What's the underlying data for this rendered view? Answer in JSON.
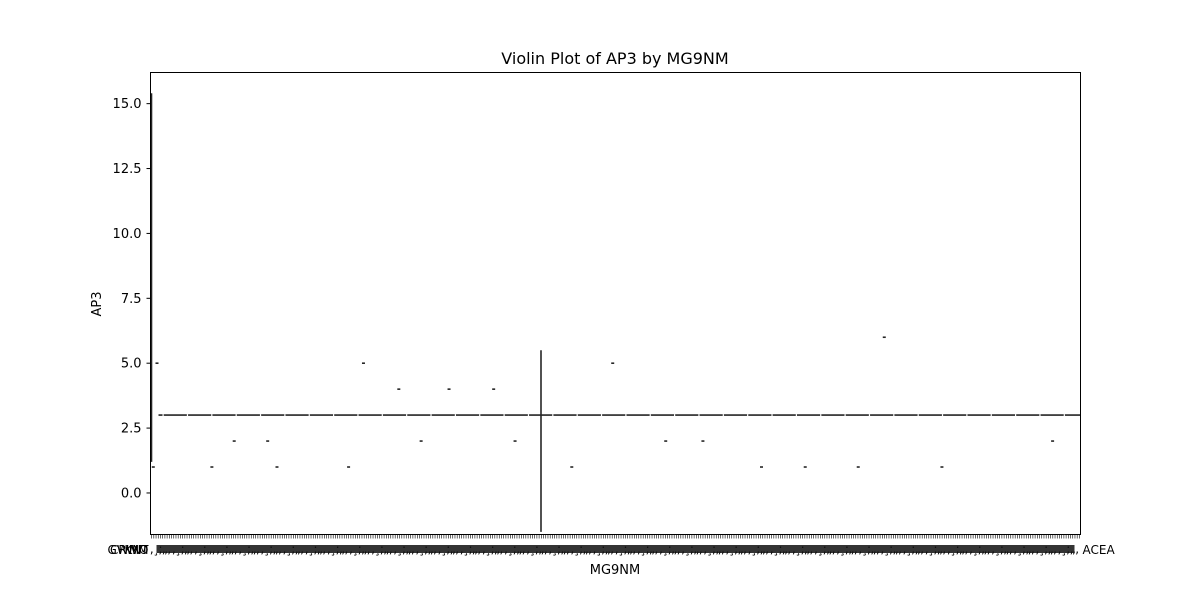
{
  "chart_data": {
    "type": "violin",
    "title": "Violin Plot of AP3 by MG9NM",
    "xlabel": "MG9NM",
    "ylabel": "AP3",
    "ylim": [
      -1.6,
      16.2
    ],
    "yticks": [
      "0.0",
      "2.5",
      "5.0",
      "7.5",
      "10.0",
      "12.5",
      "15.0"
    ],
    "ytick_values": [
      0,
      2.5,
      5.0,
      7.5,
      10.0,
      12.5,
      15.0
    ],
    "grid": false,
    "legend": "none",
    "category_count": 420,
    "xtick_labels_first": [
      "CRWM",
      "GWMO",
      "KNT"
    ],
    "xtick_labels_last": [
      "ACEA"
    ],
    "baseline_level": 3,
    "main_category_range": [
      -1.5,
      5.5
    ],
    "spike_first_category_max": 15.4,
    "outliers": [
      {
        "xfrac": 0.003,
        "y": 1
      },
      {
        "xfrac": 0.007,
        "y": 5
      },
      {
        "xfrac": 0.066,
        "y": 1
      },
      {
        "xfrac": 0.09,
        "y": 2
      },
      {
        "xfrac": 0.126,
        "y": 2
      },
      {
        "xfrac": 0.136,
        "y": 1
      },
      {
        "xfrac": 0.213,
        "y": 1
      },
      {
        "xfrac": 0.229,
        "y": 5
      },
      {
        "xfrac": 0.267,
        "y": 4
      },
      {
        "xfrac": 0.291,
        "y": 2
      },
      {
        "xfrac": 0.321,
        "y": 4
      },
      {
        "xfrac": 0.369,
        "y": 4
      },
      {
        "xfrac": 0.392,
        "y": 2
      },
      {
        "xfrac": 0.453,
        "y": 1
      },
      {
        "xfrac": 0.497,
        "y": 5
      },
      {
        "xfrac": 0.554,
        "y": 2
      },
      {
        "xfrac": 0.594,
        "y": 2
      },
      {
        "xfrac": 0.657,
        "y": 1
      },
      {
        "xfrac": 0.704,
        "y": 1
      },
      {
        "xfrac": 0.761,
        "y": 1
      },
      {
        "xfrac": 0.789,
        "y": 6
      },
      {
        "xfrac": 0.851,
        "y": 1
      },
      {
        "xfrac": 0.97,
        "y": 2
      }
    ]
  },
  "colors": {
    "axis": "#000000",
    "violin": "#262626",
    "background": "#ffffff"
  }
}
